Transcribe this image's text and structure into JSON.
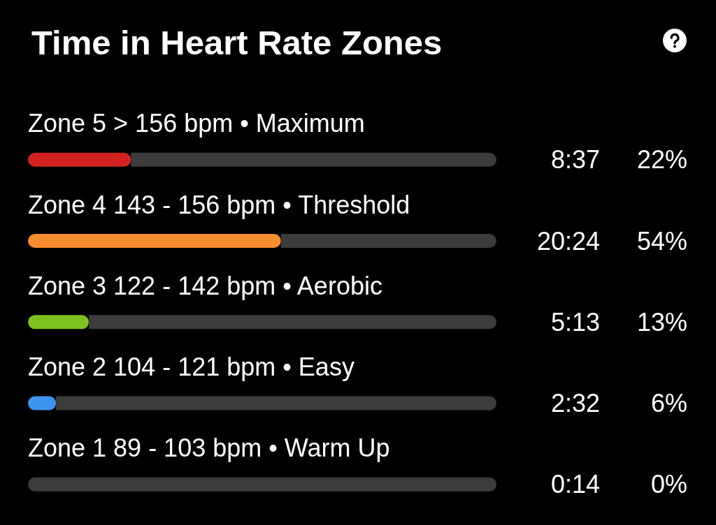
{
  "chart_data": {
    "type": "bar",
    "orientation": "horizontal",
    "stacked": true,
    "title": "Time in Heart Rate Zones",
    "categories": [
      "Zone 5 > 156 bpm • Maximum",
      "Zone 4 143 - 156 bpm • Threshold",
      "Zone 3 122 - 142 bpm • Aerobic",
      "Zone 2 104 - 121 bpm • Easy",
      "Zone 1 89 - 103 bpm • Warm Up"
    ],
    "series": [
      {
        "values": [
          22,
          54,
          13,
          6,
          0
        ],
        "colors": [
          "#d42222",
          "#f68d2e",
          "#7dc21e",
          "#3d94ee",
          null
        ],
        "value_labels": [
          "22%",
          "54%",
          "13%",
          "6%",
          "0%"
        ]
      },
      {
        "values": [
          78,
          46,
          87,
          94,
          100
        ],
        "color": "#3c3c3c"
      }
    ],
    "xlim": [
      0,
      100
    ],
    "annotations": [
      "8:37",
      "20:24",
      "5:13",
      "2:32",
      "0:14"
    ],
    "tick_labels": "y"
  }
}
